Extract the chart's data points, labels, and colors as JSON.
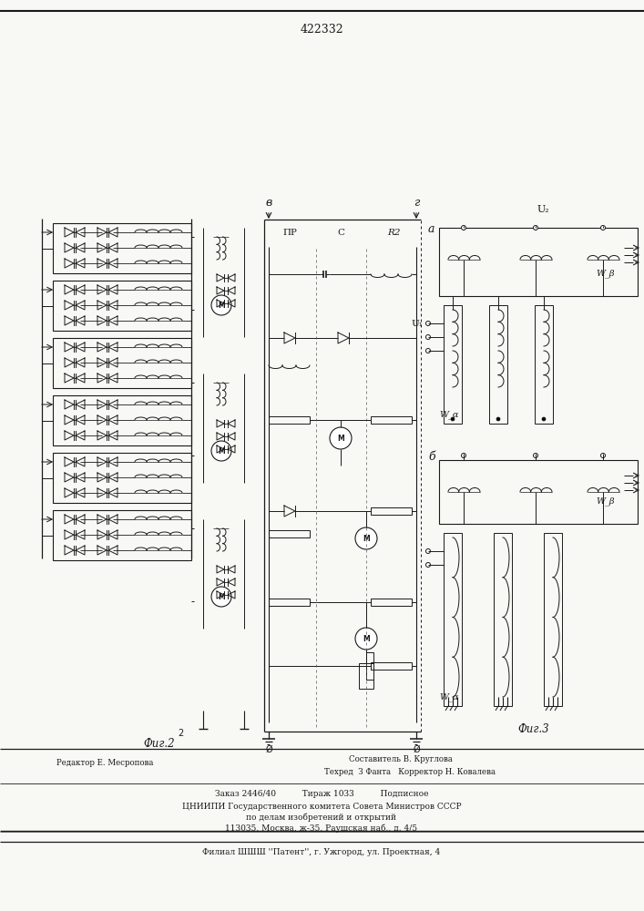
{
  "patent_number": "422332",
  "fig2_label": "Фиг.2",
  "fig3_label": "Фиг.3",
  "editor_line": "Редактор Е. Месропова",
  "composer_line": "Составитель В. Круглова",
  "techred_line": "Техред  З Фанта   Корректор Н. Ковалева",
  "order_line": "Заказ 2446/40          Тираж 1033          Подписное",
  "cniip_line": "ЦНИИПИ Государственного комитета Совета Министров СССР",
  "affairs_line": "по делам изобретений и открытий",
  "address_line": "113035, Москва, ж-35, Раушская наб., д. 4/5",
  "filial_line": "Филиал ШШШ ''Патент'', г. Ужгород, ул. Проектная, 4",
  "bg_color": "#f8f8f5",
  "line_color": "#1a1a1a"
}
